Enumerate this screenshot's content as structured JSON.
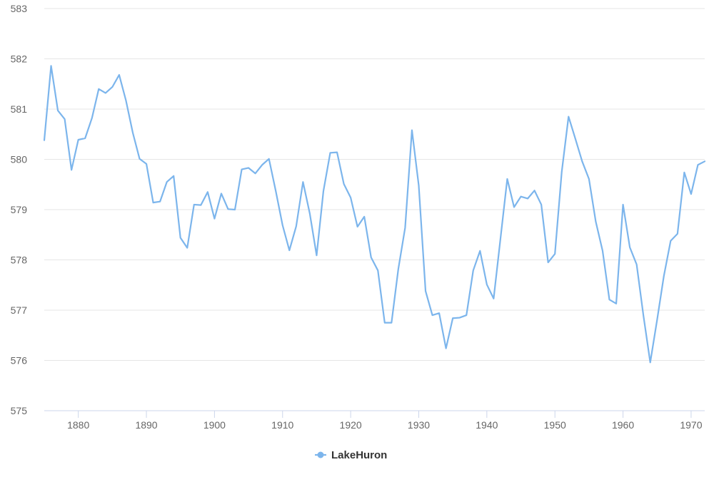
{
  "chart_data": {
    "type": "line",
    "title": "",
    "xlabel": "",
    "ylabel": "",
    "xlim": [
      1875,
      1972
    ],
    "ylim": [
      575,
      583
    ],
    "x_ticks": [
      1880,
      1890,
      1900,
      1910,
      1920,
      1930,
      1940,
      1950,
      1960,
      1970
    ],
    "y_ticks": [
      575,
      576,
      577,
      578,
      579,
      580,
      581,
      582,
      583
    ],
    "grid": "horizontal",
    "legend_position": "bottom-center",
    "series": [
      {
        "name": "LakeHuron",
        "color": "#7cb5ec",
        "x": [
          1875,
          1876,
          1877,
          1878,
          1879,
          1880,
          1881,
          1882,
          1883,
          1884,
          1885,
          1886,
          1887,
          1888,
          1889,
          1890,
          1891,
          1892,
          1893,
          1894,
          1895,
          1896,
          1897,
          1898,
          1899,
          1900,
          1901,
          1902,
          1903,
          1904,
          1905,
          1906,
          1907,
          1908,
          1909,
          1910,
          1911,
          1912,
          1913,
          1914,
          1915,
          1916,
          1917,
          1918,
          1919,
          1920,
          1921,
          1922,
          1923,
          1924,
          1925,
          1926,
          1927,
          1928,
          1929,
          1930,
          1931,
          1932,
          1933,
          1934,
          1935,
          1936,
          1937,
          1938,
          1939,
          1940,
          1941,
          1942,
          1943,
          1944,
          1945,
          1946,
          1947,
          1948,
          1949,
          1950,
          1951,
          1952,
          1953,
          1954,
          1955,
          1956,
          1957,
          1958,
          1959,
          1960,
          1961,
          1962,
          1963,
          1964,
          1965,
          1966,
          1967,
          1968,
          1969,
          1970,
          1971,
          1972
        ],
        "values": [
          580.38,
          581.86,
          580.97,
          580.8,
          579.79,
          580.39,
          580.42,
          580.82,
          581.4,
          581.32,
          581.44,
          581.68,
          581.17,
          580.53,
          580.01,
          579.91,
          579.14,
          579.16,
          579.55,
          579.67,
          578.44,
          578.24,
          579.1,
          579.09,
          579.35,
          578.82,
          579.32,
          579.01,
          579.0,
          579.8,
          579.83,
          579.72,
          579.89,
          580.01,
          579.37,
          578.69,
          578.19,
          578.67,
          579.55,
          578.92,
          578.09,
          579.37,
          580.13,
          580.14,
          579.51,
          579.24,
          578.66,
          578.86,
          578.05,
          577.79,
          576.75,
          576.75,
          577.82,
          578.64,
          580.58,
          579.48,
          577.38,
          576.9,
          576.94,
          576.24,
          576.84,
          576.85,
          576.9,
          577.79,
          578.18,
          577.51,
          577.23,
          578.42,
          579.61,
          579.05,
          579.26,
          579.22,
          579.38,
          579.1,
          577.95,
          578.12,
          579.75,
          580.85,
          580.41,
          579.96,
          579.61,
          578.76,
          578.18,
          577.21,
          577.13,
          579.1,
          578.25,
          577.91,
          576.89,
          575.96,
          576.8,
          577.68,
          578.38,
          578.52,
          579.74,
          579.31,
          579.89,
          579.96
        ]
      }
    ]
  }
}
